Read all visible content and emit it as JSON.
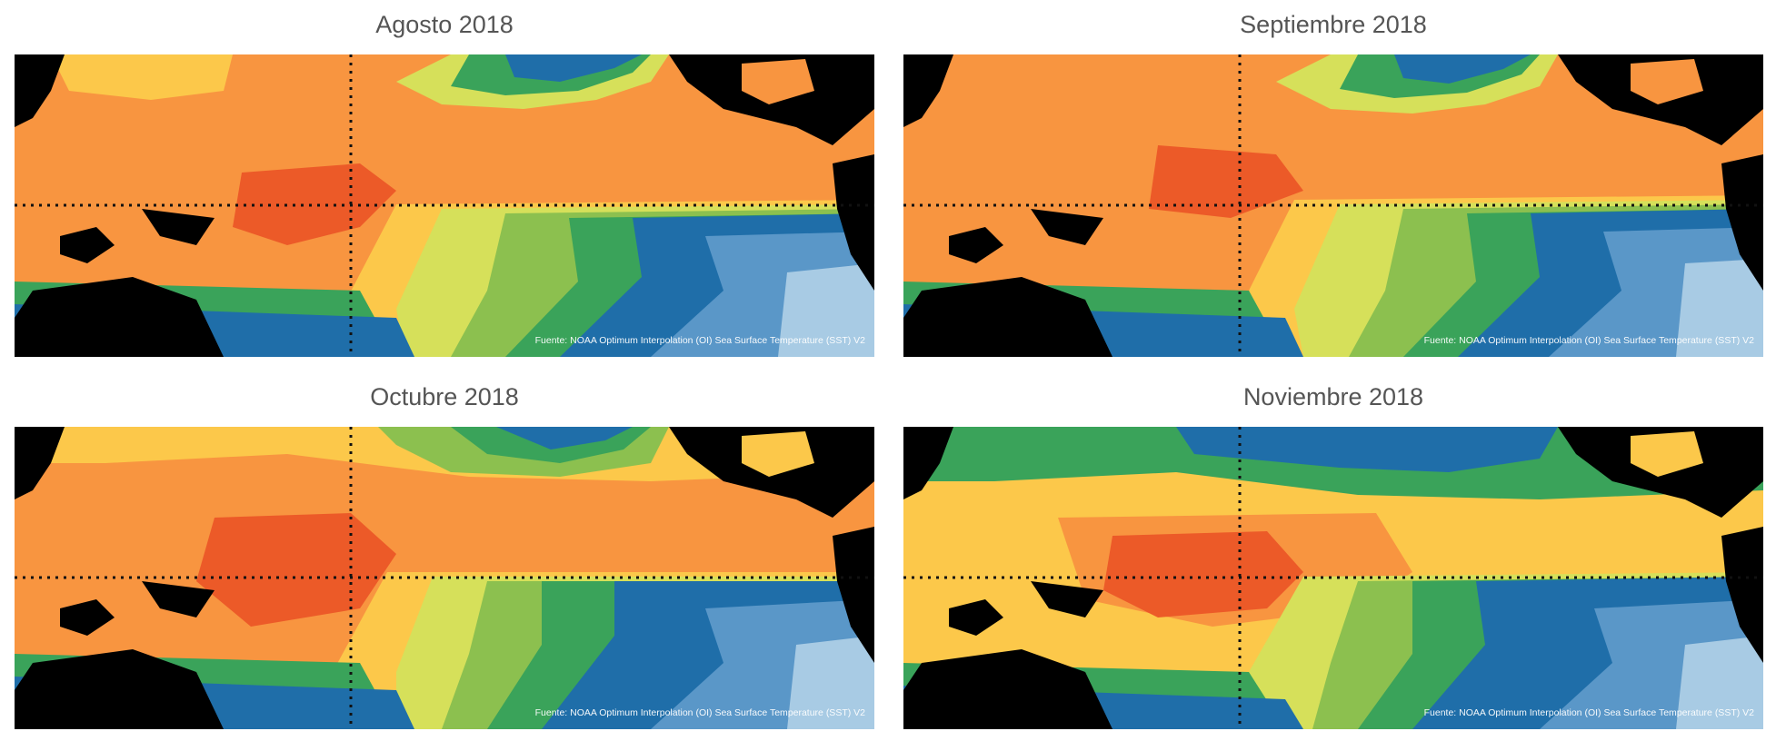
{
  "source_note": "Fuente: NOAA Optimum Interpolation (OI) Sea Surface Temperature (SST) V2",
  "panels": [
    {
      "title": "Agosto 2018"
    },
    {
      "title": "Septiembre 2018"
    },
    {
      "title": "Octubre 2018"
    },
    {
      "title": "Noviembre 2018"
    }
  ],
  "legend_colors": [
    "#cfe3f0",
    "#a8cbe4",
    "#7fb0d6",
    "#5a97c8",
    "#3a7fb9",
    "#1f6ea9",
    "#2a8a8a",
    "#3aa35a",
    "#8cc04f",
    "#d6e05a",
    "#fcc84a",
    "#f89540",
    "#ec5a28"
  ],
  "land_color": "#000000",
  "equator_line": "dotted"
}
